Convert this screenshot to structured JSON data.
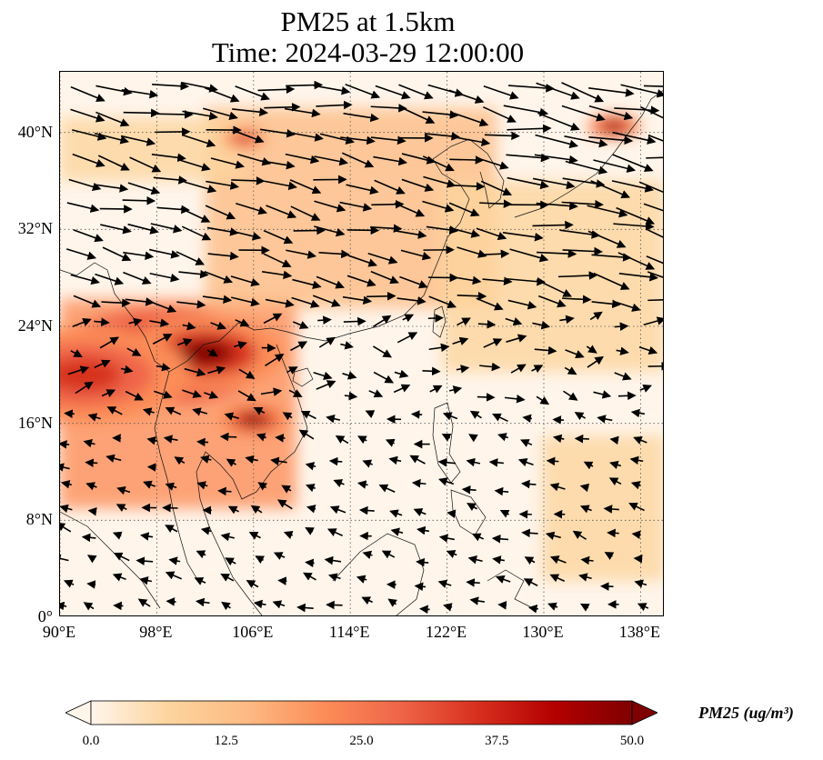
{
  "figure": {
    "title_line1": "PM25 at 1.5km",
    "title_line2": "Time: 2024-03-29 12:00:00"
  },
  "map": {
    "lon_range": [
      90,
      140
    ],
    "lat_range": [
      0,
      45
    ],
    "lat_ticks": [
      {
        "value": 40,
        "label": "40°N"
      },
      {
        "value": 32,
        "label": "32°N"
      },
      {
        "value": 24,
        "label": "24°N"
      },
      {
        "value": 16,
        "label": "16°N"
      },
      {
        "value": 8,
        "label": "8°N"
      },
      {
        "value": 0,
        "label": "0°"
      }
    ],
    "lon_ticks": [
      {
        "value": 90,
        "label": "90°E"
      },
      {
        "value": 98,
        "label": "98°E"
      },
      {
        "value": 106,
        "label": "106°E"
      },
      {
        "value": 114,
        "label": "114°E"
      },
      {
        "value": 122,
        "label": "122°E"
      },
      {
        "value": 130,
        "label": "130°E"
      },
      {
        "value": 138,
        "label": "138°E"
      }
    ],
    "gridlines": true,
    "field": "PM25",
    "hotspots": [
      {
        "lon": 98.5,
        "lat": 21.5,
        "value": 50,
        "spread": 4.0
      },
      {
        "lon": 102.0,
        "lat": 21.8,
        "value": 48,
        "spread": 3.0
      },
      {
        "lon": 106.0,
        "lat": 16.3,
        "value": 44,
        "spread": 1.3
      },
      {
        "lon": 105.2,
        "lat": 39.5,
        "value": 40,
        "spread": 0.8
      },
      {
        "lon": 135.8,
        "lat": 40.5,
        "value": 44,
        "spread": 1.0
      },
      {
        "lon": 92.0,
        "lat": 20.0,
        "value": 30,
        "spread": 4.0
      }
    ],
    "wind_note": "wind vectors"
  },
  "colorbar": {
    "min": 0.0,
    "max": 50.0,
    "ticks": [
      "0.0",
      "12.5",
      "25.0",
      "37.5",
      "50.0"
    ],
    "label": "PM25 (ug/m³)",
    "colormap": [
      "#fff5eb",
      "#fdd49e",
      "#fdbb84",
      "#fc8d59",
      "#ef6548",
      "#d7301f",
      "#b30000",
      "#7f0000"
    ]
  }
}
